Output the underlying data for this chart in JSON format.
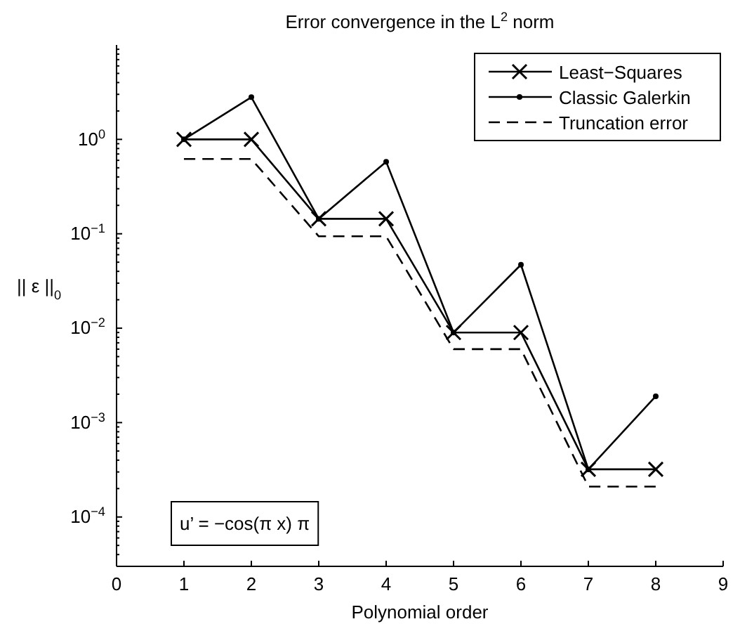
{
  "chart_data": {
    "type": "line",
    "title": "Error convergence in the L$^{2}$ norm",
    "xlabel": "Polynomial order",
    "ylabel": "|| ε ||$_{0}$",
    "x": [
      1,
      2,
      3,
      4,
      5,
      6,
      7,
      8
    ],
    "series": [
      {
        "name": "Least−Squares",
        "color": "#000000",
        "marker": "cross",
        "line_style": "solid",
        "values": [
          1,
          1,
          0.144,
          0.144,
          0.009,
          0.009,
          0.00032,
          0.00032
        ]
      },
      {
        "name": "Classic Galerkin",
        "color": "#000000",
        "marker": "circle",
        "line_style": "solid",
        "values": [
          1,
          2.8,
          0.144,
          0.58,
          0.009,
          0.047,
          0.00032,
          0.0019
        ]
      },
      {
        "name": "Truncation error",
        "color": "#000000",
        "marker": "none",
        "line_style": "dashed",
        "values": [
          0.62,
          0.62,
          0.094,
          0.094,
          0.006,
          0.006,
          0.00021,
          0.00021
        ]
      }
    ],
    "xlim": [
      0,
      9
    ],
    "xticks": [
      0,
      1,
      2,
      3,
      4,
      5,
      6,
      7,
      8,
      9
    ],
    "log": true,
    "ylim": [
      3e-05,
      10
    ],
    "yticks": [
      {
        "value": 0.0001,
        "label": "10$^{−4}$"
      },
      {
        "value": 0.001,
        "label": "10$^{−3}$"
      },
      {
        "value": 0.01,
        "label": "10$^{−2}$"
      },
      {
        "value": 0.1,
        "label": "10$^{−1}$"
      },
      {
        "value": 1,
        "label": "10$^{0}$"
      }
    ],
    "annotations": [
      "u’ = −cos(π x) π"
    ],
    "legend": "top right",
    "grid": false
  }
}
